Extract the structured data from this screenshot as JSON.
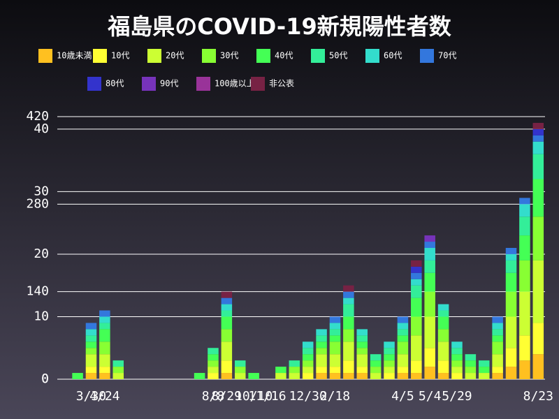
{
  "chart_data": {
    "type": "stacked-bar",
    "title": "福島県のCOVID-19新規陽性者数",
    "categories": [
      null,
      null,
      "3/30",
      "4/24",
      null,
      null,
      null,
      null,
      null,
      null,
      null,
      "8/8",
      "8/29",
      null,
      "10/10",
      "11/16",
      null,
      null,
      "12/30",
      null,
      "2/18",
      null,
      null,
      null,
      null,
      "4/5",
      null,
      "5/4",
      null,
      "5/29",
      null,
      null,
      null,
      null,
      null,
      "8/23"
    ],
    "series": [
      {
        "name": "10歳未満",
        "color": "#ffc020",
        "values": [
          0,
          0,
          1,
          1,
          0,
          0,
          0,
          0,
          0,
          0,
          0,
          0,
          1,
          0,
          0,
          0,
          0,
          0,
          0,
          1,
          1,
          1,
          1,
          0,
          0,
          1,
          1,
          2,
          1,
          0,
          0,
          0,
          1,
          2,
          3,
          4
        ]
      },
      {
        "name": "10代",
        "color": "#ffff33",
        "values": [
          0,
          0,
          1,
          1,
          0,
          0,
          0,
          0,
          0,
          0,
          0,
          1,
          2,
          0,
          0,
          0,
          0,
          0,
          1,
          1,
          1,
          2,
          1,
          0,
          1,
          1,
          2,
          3,
          2,
          1,
          0,
          0,
          1,
          3,
          4,
          5
        ]
      },
      {
        "name": "20代",
        "color": "#ccff33",
        "values": [
          0,
          0,
          2,
          2,
          1,
          0,
          0,
          0,
          0,
          0,
          0,
          1,
          3,
          1,
          0,
          0,
          1,
          1,
          1,
          2,
          2,
          3,
          2,
          1,
          1,
          2,
          4,
          5,
          3,
          1,
          1,
          1,
          2,
          5,
          7,
          10
        ]
      },
      {
        "name": "30代",
        "color": "#88ff33",
        "values": [
          0,
          0,
          1,
          2,
          1,
          0,
          0,
          0,
          0,
          0,
          0,
          1,
          2,
          1,
          0,
          0,
          0,
          1,
          1,
          1,
          2,
          2,
          1,
          1,
          1,
          2,
          3,
          4,
          2,
          1,
          1,
          0,
          2,
          4,
          5,
          7
        ]
      },
      {
        "name": "40代",
        "color": "#44ff55",
        "values": [
          0,
          1,
          1,
          2,
          0,
          0,
          0,
          0,
          0,
          0,
          1,
          1,
          2,
          0,
          1,
          0,
          1,
          0,
          1,
          1,
          1,
          2,
          1,
          1,
          1,
          1,
          3,
          3,
          2,
          1,
          1,
          1,
          1,
          3,
          4,
          6
        ]
      },
      {
        "name": "50代",
        "color": "#33ee99",
        "values": [
          0,
          0,
          1,
          1,
          1,
          0,
          0,
          0,
          0,
          0,
          0,
          1,
          1,
          1,
          0,
          0,
          0,
          1,
          1,
          1,
          1,
          2,
          1,
          1,
          1,
          1,
          2,
          2,
          1,
          1,
          1,
          1,
          1,
          2,
          3,
          4
        ]
      },
      {
        "name": "60代",
        "color": "#33ddcc",
        "values": [
          0,
          0,
          1,
          1,
          0,
          0,
          0,
          0,
          0,
          0,
          0,
          0,
          1,
          0,
          0,
          0,
          0,
          0,
          1,
          1,
          1,
          1,
          1,
          0,
          1,
          1,
          1,
          2,
          1,
          1,
          0,
          0,
          1,
          1,
          2,
          2
        ]
      },
      {
        "name": "70代",
        "color": "#3377dd",
        "values": [
          0,
          0,
          1,
          1,
          0,
          0,
          0,
          0,
          0,
          0,
          0,
          0,
          1,
          0,
          0,
          0,
          0,
          0,
          0,
          0,
          1,
          1,
          0,
          0,
          0,
          1,
          1,
          1,
          0,
          0,
          0,
          0,
          1,
          1,
          1,
          1
        ]
      },
      {
        "name": "80代",
        "color": "#3333cc",
        "values": [
          0,
          0,
          0,
          0,
          0,
          0,
          0,
          0,
          0,
          0,
          0,
          0,
          0,
          0,
          0,
          0,
          0,
          0,
          0,
          0,
          0,
          0,
          0,
          0,
          0,
          0,
          1,
          0,
          0,
          0,
          0,
          0,
          0,
          0,
          0,
          1
        ]
      },
      {
        "name": "90代",
        "color": "#7733bb",
        "values": [
          0,
          0,
          0,
          0,
          0,
          0,
          0,
          0,
          0,
          0,
          0,
          0,
          0,
          0,
          0,
          0,
          0,
          0,
          0,
          0,
          0,
          0,
          0,
          0,
          0,
          0,
          0,
          1,
          0,
          0,
          0,
          0,
          0,
          0,
          0,
          0
        ]
      },
      {
        "name": "100歳以上",
        "color": "#993399",
        "values": [
          0,
          0,
          0,
          0,
          0,
          0,
          0,
          0,
          0,
          0,
          0,
          0,
          0,
          0,
          0,
          0,
          0,
          0,
          0,
          0,
          0,
          0,
          0,
          0,
          0,
          0,
          0,
          0,
          0,
          0,
          0,
          0,
          0,
          0,
          0,
          0
        ]
      },
      {
        "name": "非公表",
        "color": "#772244",
        "values": [
          0,
          0,
          0,
          0,
          0,
          0,
          0,
          0,
          0,
          0,
          0,
          0,
          1,
          0,
          0,
          0,
          0,
          0,
          0,
          0,
          0,
          1,
          0,
          0,
          0,
          0,
          1,
          0,
          0,
          0,
          0,
          0,
          0,
          0,
          0,
          1
        ]
      }
    ],
    "ylim": [
      0,
      42
    ],
    "yticks": [
      0,
      10,
      20,
      30,
      40
    ],
    "y2lim": [
      0,
      420
    ],
    "y2ticks": [
      0,
      140,
      280,
      420
    ],
    "grid": true
  }
}
